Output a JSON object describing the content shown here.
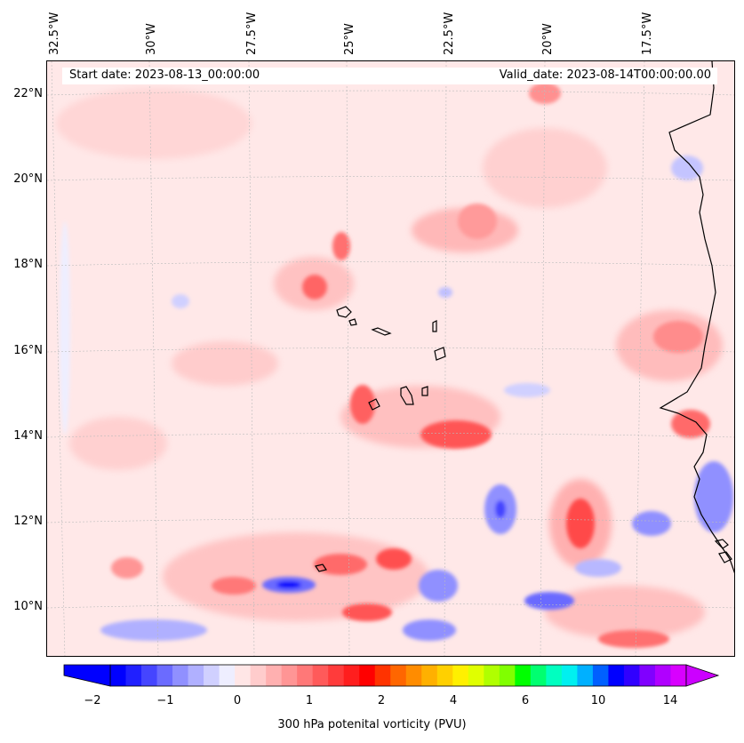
{
  "map": {
    "projection_lon_labels": [
      "32.5°W",
      "30°W",
      "27.5°W",
      "25°W",
      "22.5°W",
      "20°W",
      "17.5°W"
    ],
    "lat_labels": [
      "22°N",
      "20°N",
      "18°N",
      "16°N",
      "14°N",
      "12°N",
      "10°N"
    ],
    "start_date": "Start date: 2023-08-13_00:00:00",
    "valid_date": "Valid_date: 2023-08-14T00:00:00.00",
    "variable": "300 hPa potenital vorticity (PVU)",
    "lon_range": [
      -33,
      -15.5
    ],
    "lat_range": [
      8.8,
      22.8
    ]
  },
  "colorbar": {
    "ticks": [
      "−2",
      "−1",
      "0",
      "1",
      "2",
      "4",
      "6",
      "10",
      "14"
    ],
    "colors": [
      "#0000ff",
      "#2020ff",
      "#4545ff",
      "#6b6bff",
      "#9090ff",
      "#b0b0ff",
      "#d0d0ff",
      "#eeeeff",
      "#ffe6e6",
      "#ffcccc",
      "#ffb0b0",
      "#ff9595",
      "#ff7878",
      "#ff5a5a",
      "#ff3b3b",
      "#ff1e1e",
      "#ff0000",
      "#ff3300",
      "#ff6600",
      "#ff8c00",
      "#ffb000",
      "#ffd000",
      "#fff000",
      "#e0ff00",
      "#b0ff00",
      "#80ff00",
      "#00ff00",
      "#00ff70",
      "#00ffc0",
      "#00f0f0",
      "#00b0ff",
      "#0060ff",
      "#0000ff",
      "#3000ff",
      "#8000ff",
      "#b000ff",
      "#d800ff"
    ],
    "extend_min_color": "#0000ff",
    "extend_max_color": "#cc00ff"
  },
  "colors": {
    "background": "#ffe8e8",
    "weak_negative": "#eeeeff",
    "coastline": "#000000"
  }
}
